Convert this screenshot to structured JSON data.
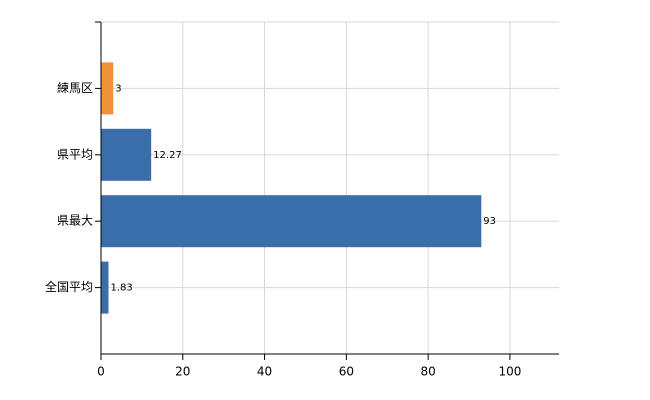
{
  "chart_data": {
    "type": "hbar",
    "categories": [
      "練馬区",
      "県平均",
      "県最大",
      "全国平均"
    ],
    "values": [
      3,
      12.27,
      93,
      1.83
    ],
    "colors": [
      "#f0923a",
      "#3a6eaa",
      "#3a6eaa",
      "#3a6eaa"
    ],
    "xlim": [
      0,
      112
    ],
    "xticks": [
      0,
      20,
      40,
      60,
      80,
      100
    ],
    "grid": true
  }
}
